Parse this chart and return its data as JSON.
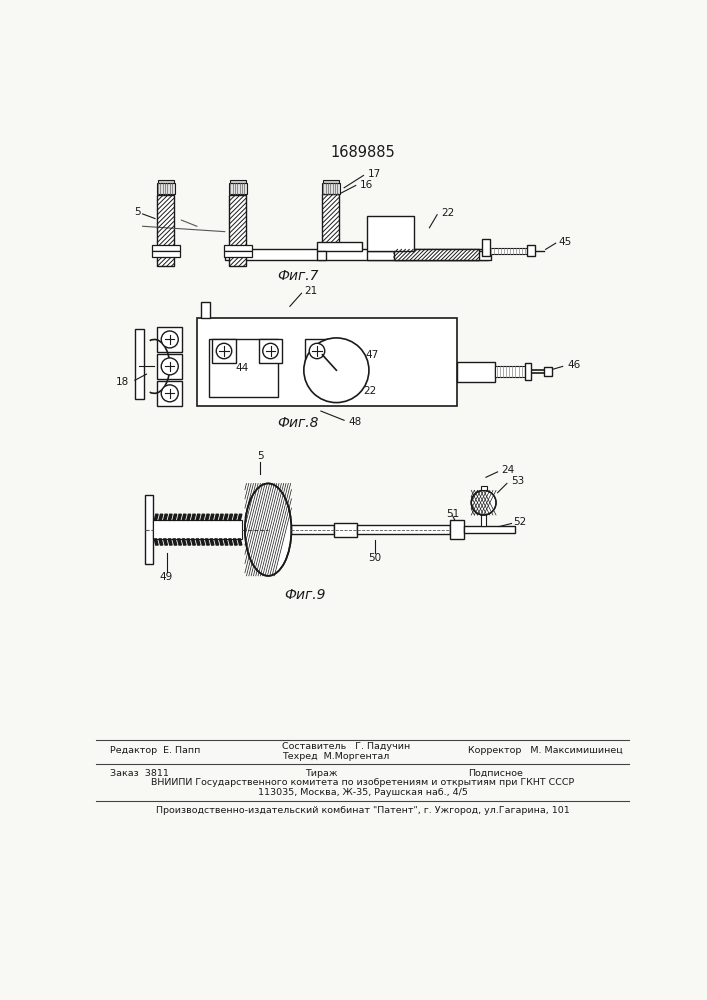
{
  "patent_number": "1689885",
  "bg_color": "#f8f8f5",
  "line_color": "#1a1a1a",
  "fig7_label": "Фиг.7",
  "fig8_label": "Фиг.8",
  "fig9_label": "Фиг.9",
  "footer": {
    "line1_left": "Редактор  Е. Папп",
    "line1_center_top": "Составитель   Г. Падучин",
    "line1_center_bot": "Техред  М.Моргентал",
    "line1_right": "Корректор   М. Максимишинец",
    "line2_left": "Заказ  3811",
    "line2_center": "Тираж",
    "line2_right": "Подписное",
    "line3": "ВНИИПИ Государственного комитета по изобретениям и открытиям при ГКНТ СССР",
    "line4": "113035, Москва, Ж-35, Раушская наб., 4/5",
    "line5": "Производственно-издательский комбинат \"Патент\", г. Ужгород, ул.Гагарина, 101"
  }
}
